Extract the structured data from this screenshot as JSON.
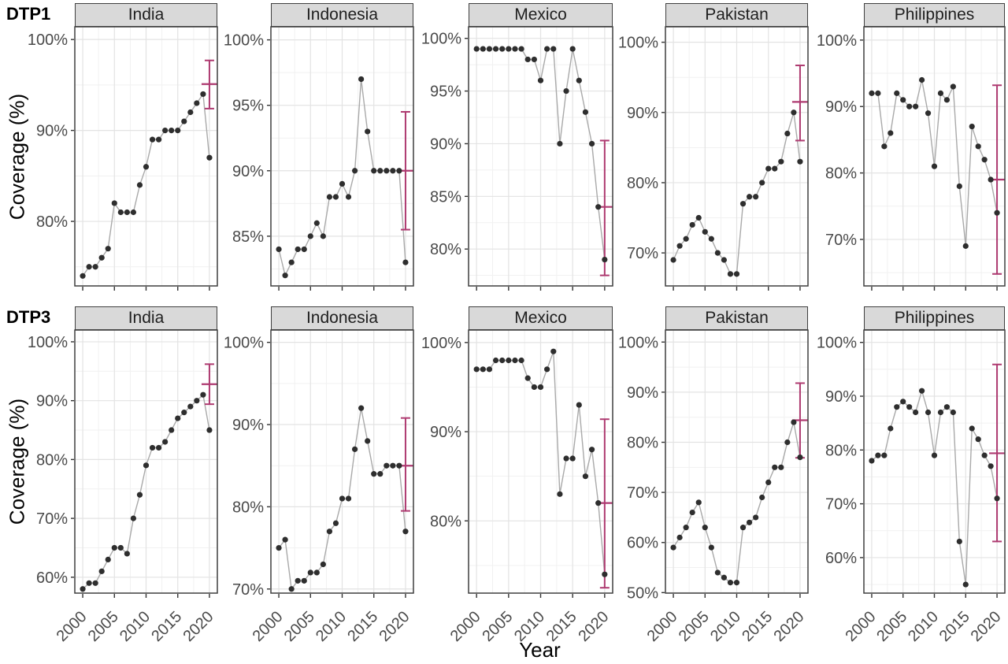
{
  "figure": {
    "row_labels": [
      "DTP1",
      "DTP3"
    ],
    "y_axis_title": "Coverage (%)",
    "x_axis_title": "Year",
    "colors": {
      "point": "#2e2e2e",
      "line": "#a9a9a9",
      "errorbar": "#ae3a70",
      "header_fill": "#d9d9d9",
      "panel_border": "#3f3f3f",
      "grid_major": "#e3e3e3",
      "grid_minor": "#f1f1f1",
      "tick_text": "#4a4a4a",
      "tick_mark": "#333333"
    }
  },
  "chart_data": {
    "type": "line",
    "title": "",
    "xlabel": "Year",
    "ylabel": "Coverage (%)",
    "row_facets": [
      "DTP1",
      "DTP3"
    ],
    "col_facets": [
      "India",
      "Indonesia",
      "Mexico",
      "Pakistan",
      "Philippines"
    ],
    "years": [
      2000,
      2001,
      2002,
      2003,
      2004,
      2005,
      2006,
      2007,
      2008,
      2009,
      2010,
      2011,
      2012,
      2013,
      2014,
      2015,
      2016,
      2017,
      2018,
      2019,
      2020
    ],
    "x_ticks": [
      2000,
      2005,
      2010,
      2015,
      2020
    ],
    "x_minor_ticks": [
      2002.5,
      2007.5,
      2012.5,
      2017.5
    ],
    "xlim": [
      1998.75,
      2021.25
    ],
    "facets": [
      {
        "row": "DTP1",
        "country": "India",
        "y_ticks": [
          100,
          90,
          80
        ],
        "ylim": [
          72.9,
          101.4
        ],
        "coverage": [
          74,
          75,
          75,
          76,
          77,
          82,
          81,
          81,
          81,
          84,
          86,
          89,
          89,
          90,
          90,
          90,
          91,
          92,
          93,
          94,
          87
        ],
        "errorbar": {
          "year": 2020,
          "low": 92.4,
          "mid": 95.1,
          "high": 97.7
        }
      },
      {
        "row": "DTP1",
        "country": "Indonesia",
        "y_ticks": [
          100,
          95,
          90,
          85
        ],
        "ylim": [
          81.2,
          101.0
        ],
        "coverage": [
          84,
          82,
          83,
          84,
          84,
          85,
          86,
          85,
          88,
          88,
          89,
          88,
          90,
          97,
          93,
          90,
          90,
          90,
          90,
          90,
          83
        ],
        "errorbar": {
          "year": 2020,
          "low": 85.5,
          "mid": 90.0,
          "high": 94.5
        }
      },
      {
        "row": "DTP1",
        "country": "Mexico",
        "y_ticks": [
          100,
          95,
          90,
          85,
          80
        ],
        "ylim": [
          76.5,
          101.1
        ],
        "coverage": [
          99,
          99,
          99,
          99,
          99,
          99,
          99,
          99,
          98,
          98,
          96,
          99,
          99,
          90,
          95,
          99,
          96,
          93,
          90,
          84,
          79
        ],
        "errorbar": {
          "year": 2020,
          "low": 77.5,
          "mid": 84.0,
          "high": 90.3
        }
      },
      {
        "row": "DTP1",
        "country": "Pakistan",
        "y_ticks": [
          100,
          90,
          80,
          70
        ],
        "ylim": [
          65.3,
          102.2
        ],
        "coverage": [
          69,
          71,
          72,
          74,
          75,
          73,
          72,
          70,
          69,
          67,
          67,
          77,
          78,
          78,
          80,
          82,
          82,
          83,
          87,
          90,
          83
        ],
        "errorbar": {
          "year": 2020,
          "low": 86.0,
          "mid": 91.5,
          "high": 96.7
        }
      },
      {
        "row": "DTP1",
        "country": "Philippines",
        "y_ticks": [
          100,
          90,
          80,
          70
        ],
        "ylim": [
          63.0,
          102.0
        ],
        "coverage": [
          92,
          92,
          84,
          86,
          92,
          91,
          90,
          90,
          94,
          89,
          81,
          92,
          91,
          93,
          78,
          69,
          87,
          84,
          82,
          79,
          74
        ],
        "errorbar": {
          "year": 2020,
          "low": 64.8,
          "mid": 79.0,
          "high": 93.2
        }
      },
      {
        "row": "DTP3",
        "country": "India",
        "y_ticks": [
          100,
          90,
          80,
          70,
          60
        ],
        "ylim": [
          57.3,
          102.0
        ],
        "coverage": [
          58,
          59,
          59,
          61,
          63,
          65,
          65,
          64,
          70,
          74,
          79,
          82,
          82,
          83,
          85,
          87,
          88,
          89,
          90,
          91,
          85
        ],
        "errorbar": {
          "year": 2020,
          "low": 89.4,
          "mid": 92.8,
          "high": 96.2
        }
      },
      {
        "row": "DTP3",
        "country": "Indonesia",
        "y_ticks": [
          100,
          90,
          80,
          70
        ],
        "ylim": [
          69.5,
          101.5
        ],
        "coverage": [
          75,
          76,
          70,
          71,
          71,
          72,
          72,
          73,
          77,
          78,
          81,
          81,
          87,
          92,
          88,
          84,
          84,
          85,
          85,
          85,
          77
        ],
        "errorbar": {
          "year": 2020,
          "low": 79.5,
          "mid": 85.0,
          "high": 90.8
        }
      },
      {
        "row": "DTP3",
        "country": "Mexico",
        "y_ticks": [
          100,
          90,
          80
        ],
        "ylim": [
          71.9,
          101.4
        ],
        "coverage": [
          97,
          97,
          97,
          98,
          98,
          98,
          98,
          98,
          96,
          95,
          95,
          97,
          99,
          83,
          87,
          87,
          93,
          85,
          88,
          82,
          74
        ],
        "errorbar": {
          "year": 2020,
          "low": 72.5,
          "mid": 82.0,
          "high": 91.4
        }
      },
      {
        "row": "DTP3",
        "country": "Pakistan",
        "y_ticks": [
          100,
          90,
          80,
          70,
          60,
          50
        ],
        "ylim": [
          49.9,
          102.4
        ],
        "coverage": [
          59,
          61,
          63,
          66,
          68,
          63,
          59,
          54,
          53,
          52,
          52,
          63,
          64,
          65,
          69,
          72,
          75,
          75,
          80,
          84,
          77
        ],
        "errorbar": {
          "year": 2020,
          "low": 76.9,
          "mid": 84.4,
          "high": 91.8
        }
      },
      {
        "row": "DTP3",
        "country": "Philippines",
        "y_ticks": [
          100,
          90,
          80,
          70,
          60
        ],
        "ylim": [
          53.4,
          102.3
        ],
        "coverage": [
          78,
          79,
          79,
          84,
          88,
          89,
          88,
          87,
          91,
          87,
          79,
          87,
          88,
          87,
          63,
          55,
          84,
          82,
          79,
          77,
          71
        ],
        "errorbar": {
          "year": 2020,
          "low": 63.0,
          "mid": 79.4,
          "high": 95.9
        }
      }
    ]
  }
}
